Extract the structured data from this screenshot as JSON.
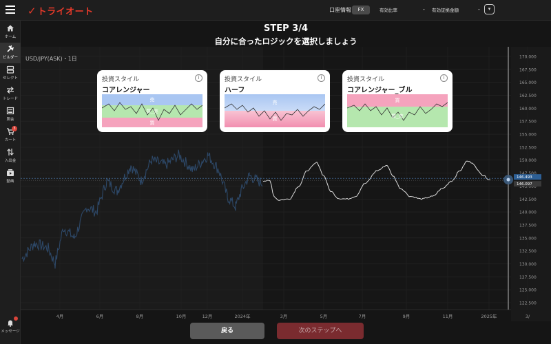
{
  "header": {
    "logo_mark": "✓",
    "logo_text": "トライオート",
    "account_info_label": "口座情報",
    "account_type_badge": "FX",
    "margin_ratio_label": "有効比率",
    "margin_ratio_value": "-",
    "margin_amount_label": "有効証拠金額",
    "margin_amount_value": "-"
  },
  "sidebar": {
    "items": [
      {
        "label": "ホーム",
        "icon": "home-icon"
      },
      {
        "label": "ビルダー",
        "icon": "builder-icon"
      },
      {
        "label": "セレクト",
        "icon": "select-icon"
      },
      {
        "label": "トレード",
        "icon": "trade-icon"
      },
      {
        "label": "照会",
        "icon": "inquiry-icon"
      },
      {
        "label": "カート",
        "icon": "cart-icon",
        "badge": "3"
      },
      {
        "label": "入出金",
        "icon": "transfer-icon"
      },
      {
        "label": "動画",
        "icon": "video-icon"
      }
    ],
    "message_label": "メッセージ"
  },
  "step": {
    "title": "STEP 3/4",
    "subtitle": "自分に合ったロジックを選択しましょう"
  },
  "symbol_label": "USD/JPY(ASK)・1日",
  "cards": [
    {
      "category": "投資スタイル",
      "name": "コアレンジャー",
      "labels": [
        "売",
        "買_売",
        "買"
      ]
    },
    {
      "category": "投資スタイル",
      "name": "ハーフ",
      "labels": [
        "売",
        "買"
      ]
    },
    {
      "category": "投資スタイル",
      "name": "コアレンジャー_ブル",
      "labels": [
        "買",
        "買_売"
      ]
    }
  ],
  "chart_data": {
    "type": "line",
    "y_ticks": [
      "170.000",
      "167.500",
      "165.000",
      "162.500",
      "160.000",
      "157.500",
      "155.000",
      "152.500",
      "150.000",
      "147.500",
      "145.000",
      "142.500",
      "140.000",
      "137.500",
      "135.000",
      "132.500",
      "130.000",
      "127.500",
      "125.000",
      "122.500"
    ],
    "x_ticks": [
      "4月",
      "6月",
      "8月",
      "10月",
      "12月",
      "2024年",
      "3月",
      "5月",
      "7月",
      "9月",
      "11月",
      "2025年",
      "3/"
    ],
    "ylim": [
      122.5,
      170
    ],
    "current_price": "146.097",
    "reference_price": "146.493",
    "colors": {
      "historical": "#2d4868",
      "projected": "#dcdcdc",
      "crosshair": "#888888"
    }
  },
  "buttons": {
    "back": "戻る",
    "next": "次のステップへ"
  }
}
